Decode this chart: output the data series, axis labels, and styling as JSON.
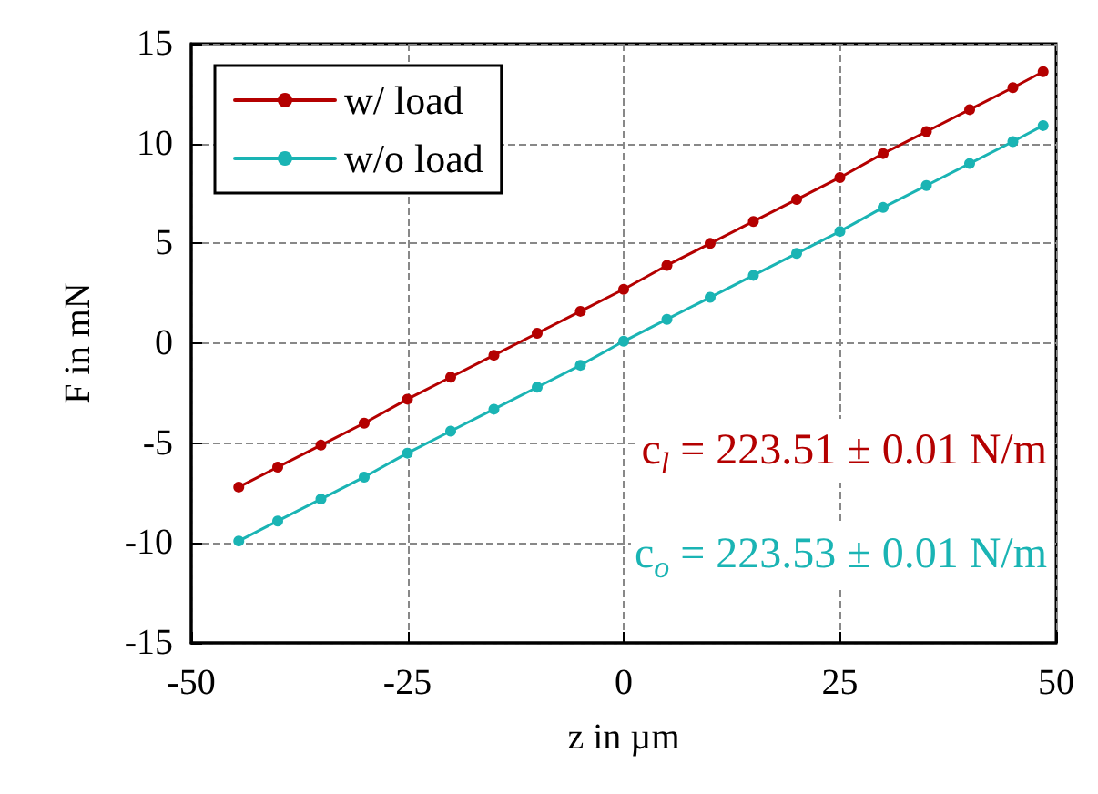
{
  "chart_data": {
    "type": "line",
    "xlabel": "z in µm",
    "ylabel": "F in mN",
    "xlim": [
      -50,
      50
    ],
    "xticks": [
      -50,
      -25,
      0,
      25,
      50
    ],
    "ylim": [
      -15,
      15
    ],
    "yticks": [
      -15,
      -10,
      -5,
      0,
      5,
      10,
      15
    ],
    "grid": true,
    "legend": "top left",
    "marker": "circle",
    "line_style": "solid",
    "x": [
      -44.5,
      -40,
      -35,
      -30,
      -25,
      -20,
      -15,
      -10,
      -5,
      0,
      5,
      10,
      15,
      20,
      25,
      30,
      35,
      40,
      45,
      48.5
    ],
    "series": [
      {
        "name": "w/ load",
        "color": "#b40000",
        "values": [
          -7.2,
          -6.2,
          -5.1,
          -4.0,
          -2.8,
          -1.7,
          -0.6,
          0.5,
          1.6,
          2.7,
          3.9,
          5.0,
          6.1,
          7.2,
          8.3,
          9.5,
          10.6,
          11.7,
          12.8,
          13.6
        ]
      },
      {
        "name": "w/o load",
        "color": "#1ab4b4",
        "values": [
          -9.9,
          -8.9,
          -7.8,
          -6.7,
          -5.5,
          -4.4,
          -3.3,
          -2.2,
          -1.1,
          0.1,
          1.2,
          2.3,
          3.4,
          4.5,
          5.6,
          6.8,
          7.9,
          9.0,
          10.1,
          10.9
        ]
      }
    ],
    "annotations": [
      "c$_{l}$ = 223.51 ± 0.01 N/m",
      "c$_{o}$ = 223.53 ± 0.01 N/m"
    ]
  }
}
